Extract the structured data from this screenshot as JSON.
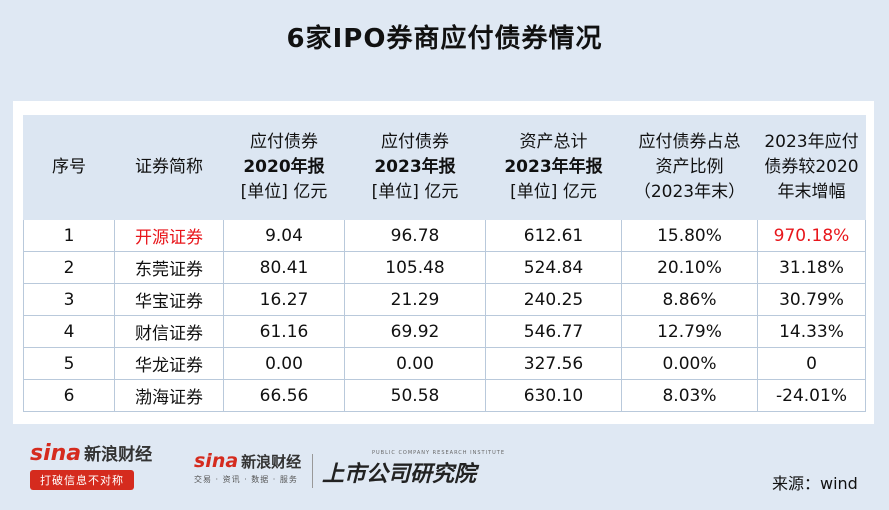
{
  "title": "6家IPO券商应付债券情况",
  "table": {
    "headers": [
      {
        "lines": [
          "序号"
        ]
      },
      {
        "lines": [
          "证券简称"
        ]
      },
      {
        "lines": [
          "应付债券",
          "2020年报",
          "[单位] 亿元"
        ]
      },
      {
        "lines": [
          "应付债券",
          "2023年报",
          "[单位] 亿元"
        ]
      },
      {
        "lines": [
          "资产总计",
          "2023年年报",
          "[单位] 亿元"
        ]
      },
      {
        "lines": [
          "应付债券占总",
          "资产比例",
          "（2023年末）"
        ]
      },
      {
        "lines": [
          "2023年应付",
          "债券较2020",
          "年末增幅"
        ]
      }
    ],
    "rows": [
      [
        "1",
        "开源证券",
        "9.04",
        "96.78",
        "612.61",
        "15.80%",
        "970.18%"
      ],
      [
        "2",
        "东莞证券",
        "80.41",
        "105.48",
        "524.84",
        "20.10%",
        "31.18%"
      ],
      [
        "3",
        "华宝证券",
        "16.27",
        "21.29",
        "240.25",
        "8.86%",
        "30.79%"
      ],
      [
        "4",
        "财信证券",
        "61.16",
        "69.92",
        "546.77",
        "12.79%",
        "14.33%"
      ],
      [
        "5",
        "华龙证券",
        "0.00",
        "0.00",
        "327.56",
        "0.00%",
        "0"
      ],
      [
        "6",
        "渤海证券",
        "66.56",
        "50.58",
        "630.10",
        "8.03%",
        "-24.01%"
      ]
    ],
    "highlight_color": "#e8161b"
  },
  "footer": {
    "logo1_brand": "sina",
    "logo1_name": "新浪财经",
    "logo1_slogan": "打破信息不对称",
    "logo2_brand": "sina",
    "logo2_name": "新浪财经",
    "logo2_sub": "交易 · 资讯 · 数据 · 服务",
    "institute_en": "PUBLIC COMPANY RESEARCH INSTITUTE",
    "institute_name": "上市公司研究院",
    "source": "来源：wind"
  }
}
